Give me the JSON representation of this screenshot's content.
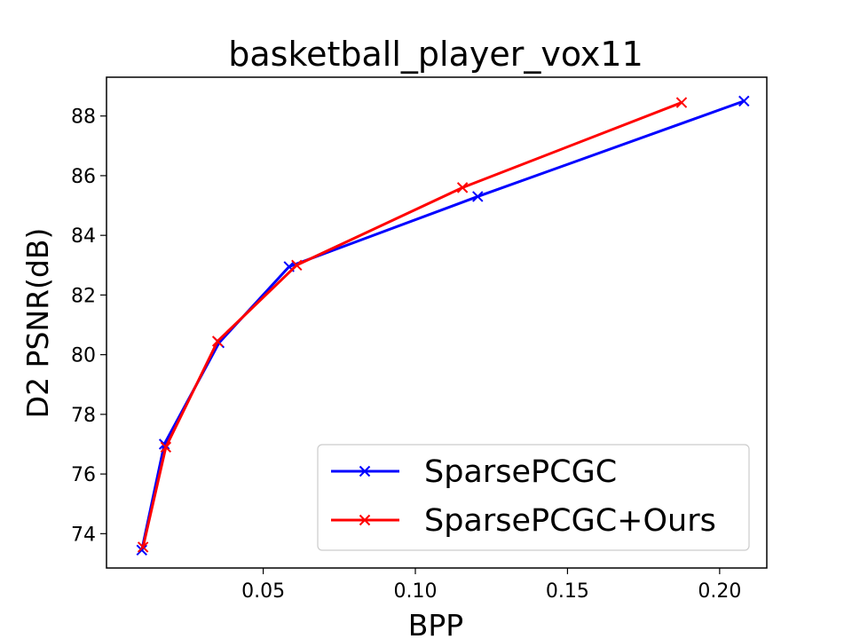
{
  "chart_data": {
    "type": "line",
    "title": "basketball_player_vox11",
    "xlabel": "BPP",
    "ylabel": "D2 PSNR(dB)",
    "xlim": [
      -0.0015,
      0.2155
    ],
    "ylim": [
      72.85,
      89.3
    ],
    "xticks": [
      0.05,
      0.1,
      0.15,
      0.2
    ],
    "xtick_labels": [
      "0.05",
      "0.10",
      "0.15",
      "0.20"
    ],
    "yticks": [
      74,
      76,
      78,
      80,
      82,
      84,
      86,
      88
    ],
    "ytick_labels": [
      "74",
      "76",
      "78",
      "80",
      "82",
      "84",
      "86",
      "88"
    ],
    "grid": false,
    "legend_position": "lower-right",
    "series": [
      {
        "name": "SparsePCGC",
        "color": "#0000ff",
        "marker": "x",
        "x": [
          0.0101,
          0.0175,
          0.0355,
          0.0585,
          0.1205,
          0.208
        ],
        "y": [
          73.45,
          77.0,
          80.4,
          82.95,
          85.3,
          88.5
        ]
      },
      {
        "name": "SparsePCGC+Ours",
        "color": "#ff0000",
        "marker": "x",
        "x": [
          0.0105,
          0.018,
          0.035,
          0.061,
          0.1155,
          0.1875
        ],
        "y": [
          73.55,
          76.9,
          80.45,
          83.0,
          85.6,
          88.45
        ]
      }
    ]
  }
}
